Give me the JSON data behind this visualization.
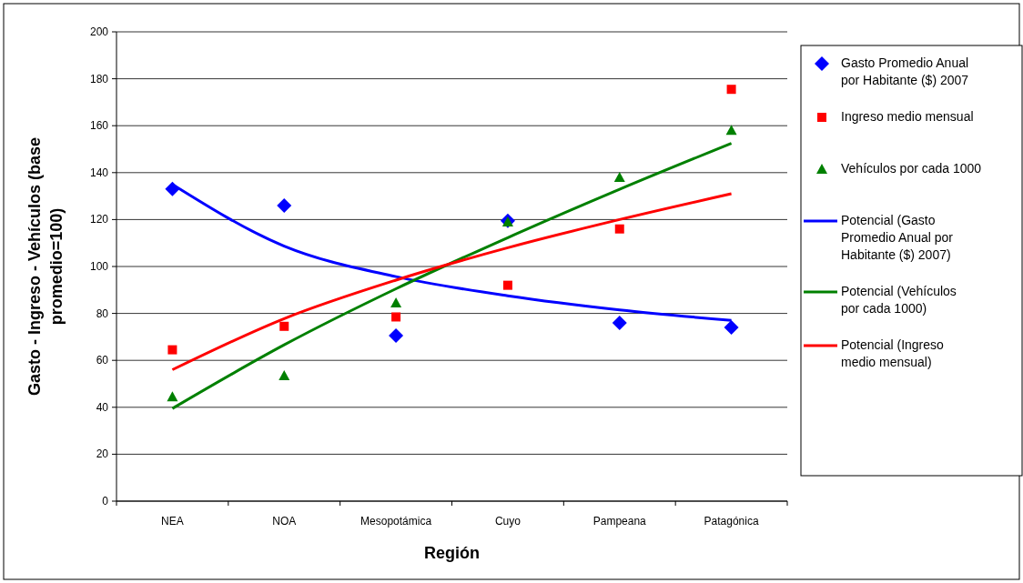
{
  "chart_data": {
    "type": "scatter",
    "xlabel": "Región",
    "ylabel": "Gasto - Ingreso - Vehículos (base promedio=100)",
    "categories": [
      "NEA",
      "NOA",
      "Mesopotámica",
      "Cuyo",
      "Pampeana",
      "Patagónica"
    ],
    "ylim": [
      0,
      200
    ],
    "yticks": [
      0,
      20,
      40,
      60,
      80,
      100,
      120,
      140,
      160,
      180,
      200
    ],
    "grid": "y",
    "legend": "right",
    "series": [
      {
        "name": "Gasto Promedio Anual por Habitante ($) 2007",
        "marker": "diamond",
        "color": "#0000ff",
        "values": [
          133,
          126,
          70.5,
          119.5,
          76,
          74
        ]
      },
      {
        "name": "Ingreso medio mensual",
        "marker": "square",
        "color": "#ff0000",
        "values": [
          64.5,
          74.5,
          78.5,
          92,
          116,
          175.5
        ]
      },
      {
        "name": "Vehículos por cada 1000",
        "marker": "triangle",
        "color": "#008000",
        "values": [
          44.5,
          53.5,
          84.5,
          119,
          138,
          158
        ]
      },
      {
        "name": "Potencial (Gasto Promedio Anual por Habitante ($) 2007)",
        "type": "line",
        "line_style": "solid",
        "color": "#0000ff",
        "values": [
          135,
          108.7,
          95.7,
          87.5,
          81.5,
          77
        ]
      },
      {
        "name": "Potencial (Vehículos por cada 1000)",
        "type": "line",
        "line_style": "solid",
        "color": "#008000",
        "values": [
          39.5,
          66.6,
          90.5,
          112.3,
          132.9,
          152.5
        ]
      },
      {
        "name": "Potencial (Ingreso medio mensual)",
        "type": "line",
        "line_style": "solid",
        "color": "#ff0000",
        "values": [
          56,
          77.8,
          94.2,
          108,
          120,
          131
        ]
      }
    ]
  }
}
